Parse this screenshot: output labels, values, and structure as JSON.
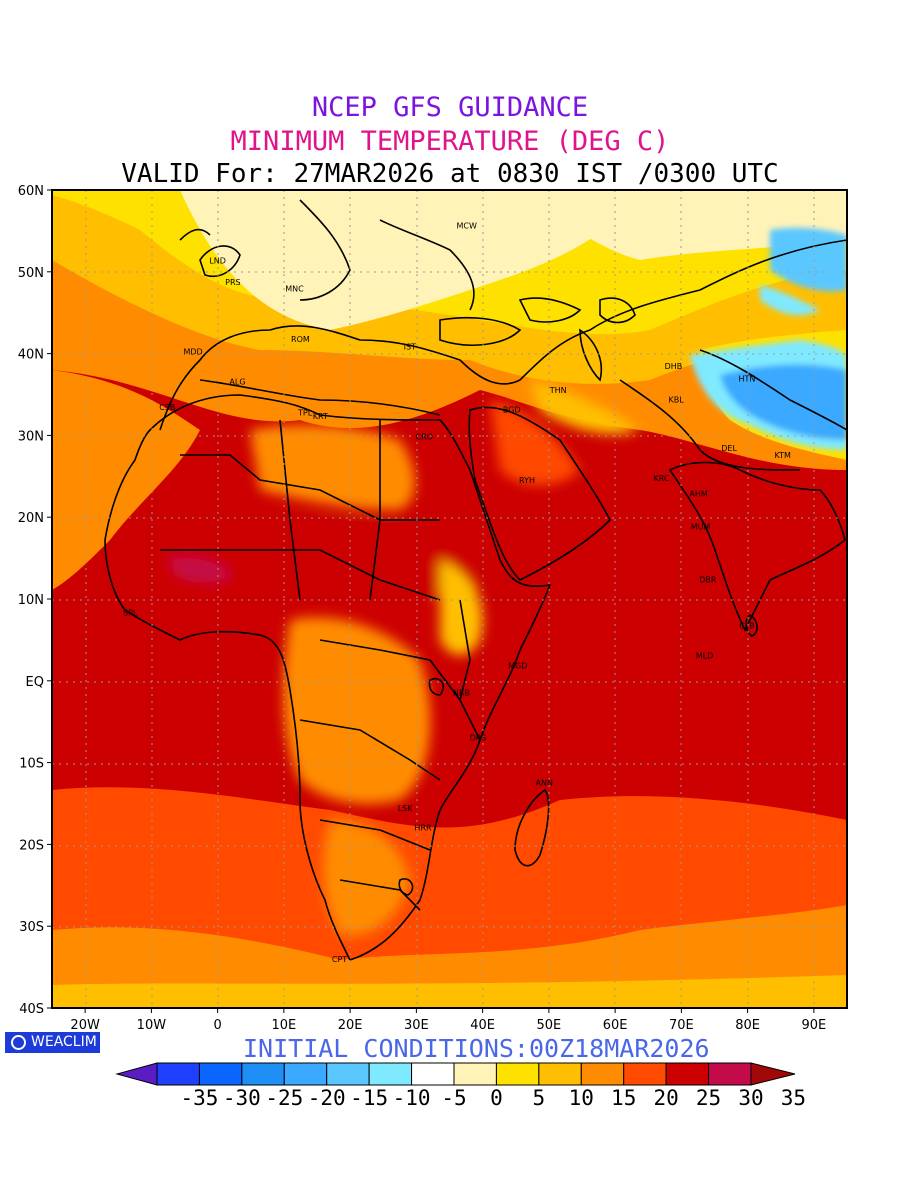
{
  "titles": {
    "line1": "NCEP GFS GUIDANCE",
    "line2": "MINIMUM TEMPERATURE (DEG C)",
    "line3": "VALID For: 27MAR2026 at 0830 IST /0300 UTC",
    "line1_color": "#7b14e0",
    "line2_color": "#e0148a"
  },
  "initial_conditions": "INITIAL CONDITIONS:00Z18MAR2026",
  "initial_conditions_color": "#4a67e8",
  "logo_text": "WEACLIM",
  "map": {
    "projection": "lat-lon",
    "lon_range": [
      -25,
      95
    ],
    "lat_range": [
      -40,
      60
    ],
    "gridlines": "dotted",
    "lat_ticks": [
      "60N",
      "50N",
      "40N",
      "30N",
      "20N",
      "10N",
      "EQ",
      "10S",
      "20S",
      "30S",
      "40S"
    ],
    "lon_ticks": [
      "20W",
      "10W",
      "0",
      "10E",
      "20E",
      "30E",
      "40E",
      "50E",
      "60E",
      "70E",
      "80E",
      "90E"
    ],
    "city_labels": [
      "MCW",
      "LND",
      "PRS",
      "MNC",
      "ROM",
      "MDD",
      "IST",
      "ALG",
      "CSB",
      "TPL",
      "KRT",
      "CRO",
      "BGD",
      "THN",
      "RYH",
      "DHB",
      "KBL",
      "HTN",
      "KRC",
      "DEL",
      "KTM",
      "AHM",
      "MUM",
      "DBR",
      "CLB",
      "MLD",
      "SPL",
      "NRB",
      "MGD",
      "DRS",
      "ANN",
      "HRR",
      "LSK",
      "CPT"
    ]
  },
  "colorbar": {
    "labels": [
      "-35",
      "-30",
      "-25",
      "-20",
      "-15",
      "-10",
      "-5",
      "0",
      "5",
      "10",
      "15",
      "20",
      "25",
      "30",
      "35"
    ],
    "colors": [
      "#5a1dc4",
      "#1f3fff",
      "#0a66ff",
      "#1e8ff5",
      "#3aa9ff",
      "#5ac8ff",
      "#7fe9ff",
      "#ffffff",
      "#fff3b8",
      "#ffe100",
      "#ffbf00",
      "#ff8c00",
      "#ff4a00",
      "#cc0000",
      "#c40b4a",
      "#a10808"
    ]
  }
}
